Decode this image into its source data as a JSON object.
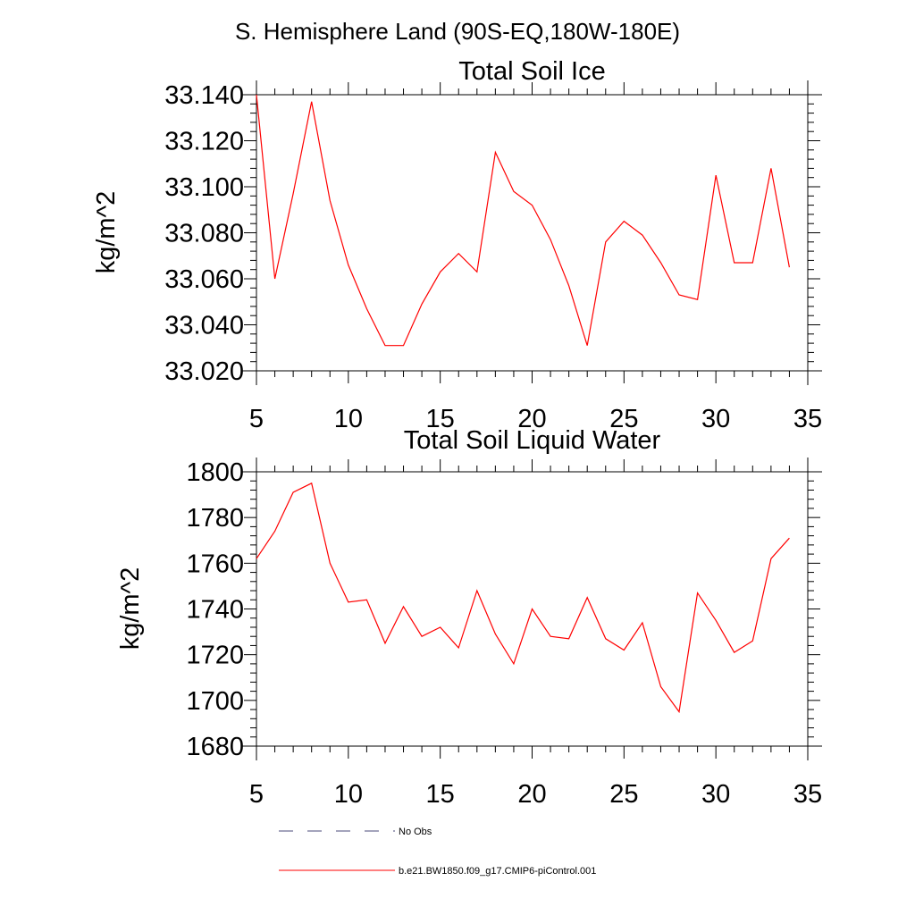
{
  "figure_title": "S. Hemisphere Land (90S-EQ,180W-180E)",
  "colors": {
    "model_line": "#ff0000",
    "obs_line": "#4a4a7a",
    "axis": "#000000"
  },
  "chart_data": [
    {
      "type": "line",
      "title": "Total Soil Ice",
      "ylabel": "kg/m^2",
      "xlabel": "",
      "xlim": [
        5,
        35
      ],
      "ylim": [
        33.02,
        33.14
      ],
      "xticks": [
        5,
        10,
        15,
        20,
        25,
        30,
        35
      ],
      "xtick_labels": [
        "5",
        "10",
        "15",
        "20",
        "25",
        "30",
        "35"
      ],
      "yticks": [
        33.02,
        33.04,
        33.06,
        33.08,
        33.1,
        33.12,
        33.14
      ],
      "ytick_labels": [
        "33.020",
        "33.040",
        "33.060",
        "33.080",
        "33.100",
        "33.120",
        "33.140"
      ],
      "grid": false,
      "series": [
        {
          "name": "b.e21.BW1850.f09_g17.CMIP6-piControl.001",
          "x": [
            5,
            6,
            7,
            8,
            9,
            10,
            11,
            12,
            13,
            14,
            15,
            16,
            17,
            18,
            19,
            20,
            21,
            22,
            23,
            24,
            25,
            26,
            27,
            28,
            29,
            30,
            31,
            32,
            33,
            34
          ],
          "values": [
            33.14,
            33.06,
            33.097,
            33.137,
            33.094,
            33.066,
            33.047,
            33.031,
            33.031,
            33.049,
            33.063,
            33.071,
            33.063,
            33.115,
            33.098,
            33.092,
            33.077,
            33.057,
            33.031,
            33.076,
            33.085,
            33.079,
            33.067,
            33.053,
            33.051,
            33.105,
            33.067,
            33.067,
            33.108,
            33.065
          ]
        }
      ]
    },
    {
      "type": "line",
      "title": "Total Soil Liquid Water",
      "ylabel": "kg/m^2",
      "xlabel": "",
      "xlim": [
        5,
        35
      ],
      "ylim": [
        1680,
        1800
      ],
      "xticks": [
        5,
        10,
        15,
        20,
        25,
        30,
        35
      ],
      "xtick_labels": [
        "5",
        "10",
        "15",
        "20",
        "25",
        "30",
        "35"
      ],
      "yticks": [
        1680,
        1700,
        1720,
        1740,
        1760,
        1780,
        1800
      ],
      "ytick_labels": [
        "1680",
        "1700",
        "1720",
        "1740",
        "1760",
        "1780",
        "1800"
      ],
      "grid": false,
      "series": [
        {
          "name": "b.e21.BW1850.f09_g17.CMIP6-piControl.001",
          "x": [
            5,
            6,
            7,
            8,
            9,
            10,
            11,
            12,
            13,
            14,
            15,
            16,
            17,
            18,
            19,
            20,
            21,
            22,
            23,
            24,
            25,
            26,
            27,
            28,
            29,
            30,
            31,
            32,
            33,
            34
          ],
          "values": [
            1762,
            1774,
            1791,
            1795,
            1760,
            1743,
            1744,
            1725,
            1741,
            1728,
            1732,
            1723,
            1748,
            1729,
            1716,
            1740,
            1728,
            1727,
            1745,
            1727,
            1722,
            1734,
            1706,
            1695,
            1747,
            1735,
            1721,
            1726,
            1762,
            1771
          ]
        }
      ]
    }
  ],
  "legend": {
    "placement": "bottom-left",
    "entries": [
      {
        "label": "No Obs",
        "style": "dashed",
        "color": "#4a4a7a"
      },
      {
        "label": "b.e21.BW1850.f09_g17.CMIP6-piControl.001",
        "style": "solid",
        "color": "#ff0000"
      }
    ]
  }
}
